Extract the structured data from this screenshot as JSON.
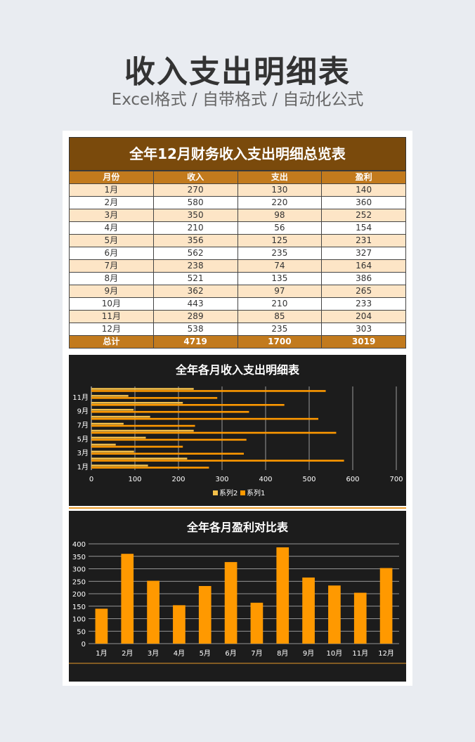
{
  "header": {
    "title": "收入支出明细表",
    "subtitle": "Excel格式 / 自带格式 / 自动化公式"
  },
  "table": {
    "title": "全年12月财务收入支出明细总览表",
    "columns": [
      "月份",
      "收入",
      "支出",
      "盈利"
    ],
    "rows": [
      [
        "1月",
        "270",
        "130",
        "140"
      ],
      [
        "2月",
        "580",
        "220",
        "360"
      ],
      [
        "3月",
        "350",
        "98",
        "252"
      ],
      [
        "4月",
        "210",
        "56",
        "154"
      ],
      [
        "5月",
        "356",
        "125",
        "231"
      ],
      [
        "6月",
        "562",
        "235",
        "327"
      ],
      [
        "7月",
        "238",
        "74",
        "164"
      ],
      [
        "8月",
        "521",
        "135",
        "386"
      ],
      [
        "9月",
        "362",
        "97",
        "265"
      ],
      [
        "10月",
        "443",
        "210",
        "233"
      ],
      [
        "11月",
        "289",
        "85",
        "204"
      ],
      [
        "12月",
        "538",
        "235",
        "303"
      ]
    ],
    "total": [
      "总计",
      "4719",
      "1700",
      "3019"
    ]
  },
  "colors": {
    "title_bg": "#7a4a0c",
    "header_bg": "#c27a1d",
    "row_alt": "#fde5c6",
    "chart_bg": "#1c1c1c",
    "series1": "#ff9900",
    "series2": "#f4c04a"
  },
  "chart_data": [
    {
      "type": "bar",
      "orientation": "horizontal",
      "title": "全年各月收入支出明细表",
      "categories": [
        "1月",
        "2月",
        "3月",
        "4月",
        "5月",
        "6月",
        "7月",
        "8月",
        "9月",
        "10月",
        "11月",
        "12月"
      ],
      "y_tick_labels": [
        "1月",
        "3月",
        "5月",
        "7月",
        "9月",
        "11月"
      ],
      "series": [
        {
          "name": "系列2",
          "values": [
            130,
            220,
            98,
            56,
            125,
            235,
            74,
            135,
            97,
            210,
            85,
            235
          ]
        },
        {
          "name": "系列1",
          "values": [
            270,
            580,
            350,
            210,
            356,
            562,
            238,
            521,
            362,
            443,
            289,
            538
          ]
        }
      ],
      "xlim": [
        0,
        700
      ],
      "x_ticks": [
        0,
        100,
        200,
        300,
        400,
        500,
        600,
        700
      ],
      "grid": true,
      "legend": "bottom"
    },
    {
      "type": "bar",
      "title": "全年各月盈利对比表",
      "categories": [
        "1月",
        "2月",
        "3月",
        "4月",
        "5月",
        "6月",
        "7月",
        "8月",
        "9月",
        "10月",
        "11月",
        "12月"
      ],
      "values": [
        140,
        360,
        252,
        154,
        231,
        327,
        164,
        386,
        265,
        233,
        204,
        303
      ],
      "ylim": [
        0,
        400
      ],
      "y_ticks": [
        0,
        50,
        100,
        150,
        200,
        250,
        300,
        350,
        400
      ],
      "grid": true
    }
  ]
}
